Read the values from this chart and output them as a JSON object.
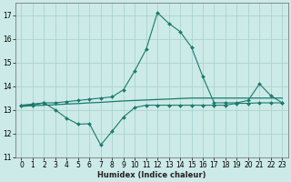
{
  "xlabel": "Humidex (Indice chaleur)",
  "xlim": [
    -0.5,
    23.5
  ],
  "ylim": [
    11,
    17.5
  ],
  "yticks": [
    11,
    12,
    13,
    14,
    15,
    16,
    17
  ],
  "xticks": [
    0,
    1,
    2,
    3,
    4,
    5,
    6,
    7,
    8,
    9,
    10,
    11,
    12,
    13,
    14,
    15,
    16,
    17,
    18,
    19,
    20,
    21,
    22,
    23
  ],
  "bg_color": "#cceae7",
  "grid_color": "#aad4d0",
  "line_color": "#1a7a6e",
  "line1_x": [
    0,
    1,
    2,
    3,
    4,
    5,
    6,
    7,
    8,
    9,
    10,
    11,
    12,
    13,
    14,
    15,
    16,
    17,
    18,
    19,
    20,
    21,
    22,
    23
  ],
  "line1_y": [
    13.2,
    13.25,
    13.3,
    13.0,
    12.65,
    12.4,
    12.42,
    11.52,
    12.1,
    12.7,
    13.1,
    13.2,
    13.2,
    13.2,
    13.2,
    13.2,
    13.2,
    13.2,
    13.2,
    13.28,
    13.28,
    13.3,
    13.3,
    13.3
  ],
  "line2_x": [
    0,
    1,
    2,
    3,
    4,
    5,
    6,
    7,
    8,
    9,
    10,
    11,
    12,
    13,
    14,
    15,
    16,
    17,
    18,
    19,
    20,
    21,
    22,
    23
  ],
  "line2_y": [
    13.15,
    13.18,
    13.2,
    13.22,
    13.25,
    13.27,
    13.3,
    13.32,
    13.35,
    13.38,
    13.4,
    13.42,
    13.44,
    13.46,
    13.48,
    13.5,
    13.5,
    13.5,
    13.5,
    13.5,
    13.5,
    13.5,
    13.5,
    13.5
  ],
  "line3_x": [
    0,
    1,
    2,
    3,
    4,
    5,
    6,
    7,
    8,
    9,
    10,
    11,
    12,
    13,
    14,
    15,
    16,
    17,
    18,
    19,
    20,
    21,
    22,
    23
  ],
  "line3_y": [
    13.2,
    13.2,
    13.3,
    13.3,
    13.35,
    13.4,
    13.45,
    13.5,
    13.55,
    13.85,
    14.65,
    15.55,
    17.1,
    16.65,
    16.3,
    15.65,
    14.4,
    13.3,
    13.3,
    13.3,
    13.4,
    14.1,
    13.6,
    13.3
  ]
}
